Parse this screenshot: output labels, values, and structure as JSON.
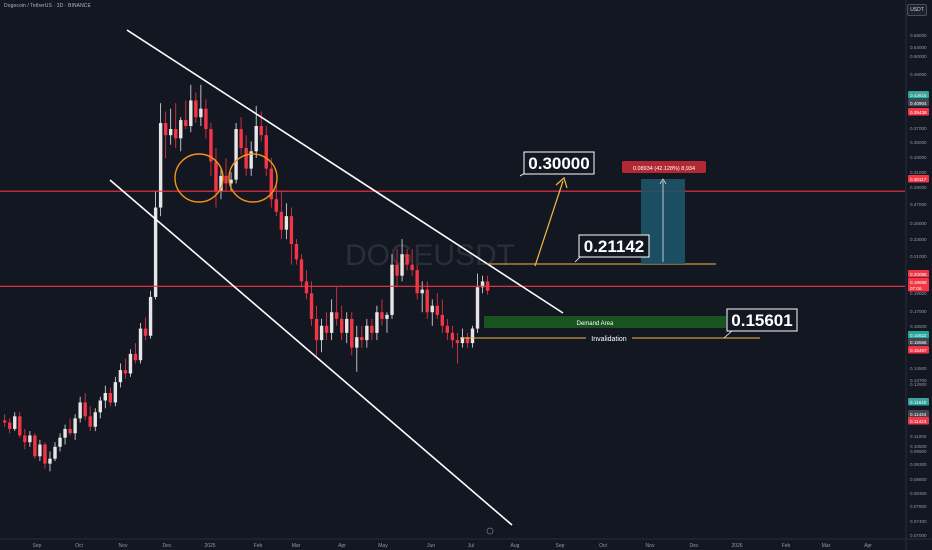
{
  "header": {
    "title": "Dogecoin / TetherUS · 3D · BINANCE",
    "currency": "USDT"
  },
  "chart_data": {
    "type": "candlestick",
    "symbol": "DOGEUSDT",
    "interval": "3D",
    "exchange": "BINANCE",
    "watermark": "DOGEUSDT",
    "x_labels": [
      "Sep",
      "Oct",
      "Nov",
      "Dec",
      "2025",
      "Feb",
      "Mar",
      "Apr",
      "May",
      "Jun",
      "Jul",
      "Aug",
      "Sep",
      "Oct",
      "Nov",
      "Dec",
      "2026",
      "Feb",
      "Mar",
      "Apr"
    ],
    "y_ticks": [
      "0.58000",
      "0.54000",
      "0.50000",
      "0.46000",
      "0.42000",
      "0.37000",
      "0.35000",
      "0.33000",
      "0.31000",
      "0.29000",
      "0.27000",
      "0.25000",
      "0.23000",
      "0.21000",
      "0.19000",
      "0.17000",
      "0.16500",
      "0.14500",
      "0.13700",
      "0.12900",
      "0.12100",
      "0.11000",
      "0.10500",
      "0.09900",
      "0.09300",
      "0.08800",
      "0.08300",
      "0.07800",
      "0.07400",
      "0.07000"
    ],
    "y_scale": "log",
    "candles": [
      [
        0.114,
        0.117,
        0.111,
        0.113
      ],
      [
        0.113,
        0.115,
        0.108,
        0.11
      ],
      [
        0.11,
        0.118,
        0.109,
        0.116
      ],
      [
        0.116,
        0.118,
        0.106,
        0.107
      ],
      [
        0.107,
        0.11,
        0.101,
        0.104
      ],
      [
        0.104,
        0.109,
        0.102,
        0.107
      ],
      [
        0.107,
        0.108,
        0.097,
        0.098
      ],
      [
        0.098,
        0.105,
        0.096,
        0.103
      ],
      [
        0.103,
        0.104,
        0.093,
        0.095
      ],
      [
        0.095,
        0.1,
        0.092,
        0.097
      ],
      [
        0.097,
        0.104,
        0.096,
        0.102
      ],
      [
        0.102,
        0.108,
        0.1,
        0.106
      ],
      [
        0.106,
        0.112,
        0.103,
        0.11
      ],
      [
        0.11,
        0.115,
        0.107,
        0.108
      ],
      [
        0.108,
        0.117,
        0.105,
        0.115
      ],
      [
        0.115,
        0.126,
        0.113,
        0.123
      ],
      [
        0.123,
        0.128,
        0.114,
        0.116
      ],
      [
        0.116,
        0.121,
        0.109,
        0.111
      ],
      [
        0.111,
        0.12,
        0.109,
        0.118
      ],
      [
        0.118,
        0.126,
        0.115,
        0.124
      ],
      [
        0.124,
        0.132,
        0.12,
        0.128
      ],
      [
        0.128,
        0.131,
        0.121,
        0.123
      ],
      [
        0.123,
        0.137,
        0.121,
        0.134
      ],
      [
        0.134,
        0.145,
        0.131,
        0.141
      ],
      [
        0.141,
        0.148,
        0.136,
        0.139
      ],
      [
        0.139,
        0.154,
        0.137,
        0.151
      ],
      [
        0.151,
        0.158,
        0.145,
        0.147
      ],
      [
        0.147,
        0.172,
        0.145,
        0.168
      ],
      [
        0.168,
        0.176,
        0.16,
        0.163
      ],
      [
        0.163,
        0.197,
        0.161,
        0.192
      ],
      [
        0.192,
        0.3,
        0.19,
        0.28
      ],
      [
        0.28,
        0.435,
        0.27,
        0.4
      ],
      [
        0.4,
        0.42,
        0.345,
        0.38
      ],
      [
        0.38,
        0.425,
        0.365,
        0.39
      ],
      [
        0.39,
        0.435,
        0.36,
        0.375
      ],
      [
        0.375,
        0.41,
        0.355,
        0.405
      ],
      [
        0.405,
        0.44,
        0.39,
        0.395
      ],
      [
        0.395,
        0.47,
        0.385,
        0.44
      ],
      [
        0.44,
        0.455,
        0.4,
        0.41
      ],
      [
        0.41,
        0.47,
        0.395,
        0.425
      ],
      [
        0.425,
        0.442,
        0.375,
        0.39
      ],
      [
        0.39,
        0.4,
        0.32,
        0.34
      ],
      [
        0.34,
        0.36,
        0.28,
        0.3
      ],
      [
        0.3,
        0.33,
        0.29,
        0.32
      ],
      [
        0.32,
        0.345,
        0.3,
        0.31
      ],
      [
        0.31,
        0.325,
        0.3,
        0.315
      ],
      [
        0.315,
        0.4,
        0.31,
        0.39
      ],
      [
        0.39,
        0.41,
        0.35,
        0.36
      ],
      [
        0.36,
        0.38,
        0.32,
        0.33
      ],
      [
        0.33,
        0.37,
        0.32,
        0.355
      ],
      [
        0.355,
        0.43,
        0.345,
        0.395
      ],
      [
        0.395,
        0.42,
        0.37,
        0.38
      ],
      [
        0.38,
        0.395,
        0.32,
        0.33
      ],
      [
        0.33,
        0.345,
        0.28,
        0.29
      ],
      [
        0.29,
        0.31,
        0.27,
        0.275
      ],
      [
        0.275,
        0.3,
        0.245,
        0.255
      ],
      [
        0.255,
        0.285,
        0.245,
        0.27
      ],
      [
        0.27,
        0.28,
        0.22,
        0.24
      ],
      [
        0.24,
        0.245,
        0.22,
        0.225
      ],
      [
        0.225,
        0.23,
        0.2,
        0.205
      ],
      [
        0.205,
        0.215,
        0.19,
        0.195
      ],
      [
        0.195,
        0.205,
        0.17,
        0.175
      ],
      [
        0.175,
        0.185,
        0.15,
        0.16
      ],
      [
        0.16,
        0.175,
        0.152,
        0.17
      ],
      [
        0.17,
        0.18,
        0.16,
        0.165
      ],
      [
        0.165,
        0.19,
        0.16,
        0.18
      ],
      [
        0.18,
        0.2,
        0.17,
        0.175
      ],
      [
        0.175,
        0.185,
        0.16,
        0.165
      ],
      [
        0.165,
        0.18,
        0.158,
        0.175
      ],
      [
        0.175,
        0.18,
        0.15,
        0.155
      ],
      [
        0.155,
        0.17,
        0.14,
        0.162
      ],
      [
        0.162,
        0.17,
        0.155,
        0.16
      ],
      [
        0.16,
        0.175,
        0.155,
        0.17
      ],
      [
        0.17,
        0.175,
        0.16,
        0.165
      ],
      [
        0.165,
        0.185,
        0.16,
        0.18
      ],
      [
        0.18,
        0.19,
        0.17,
        0.175
      ],
      [
        0.175,
        0.18,
        0.165,
        0.178
      ],
      [
        0.178,
        0.23,
        0.175,
        0.22
      ],
      [
        0.22,
        0.235,
        0.2,
        0.21
      ],
      [
        0.21,
        0.245,
        0.205,
        0.23
      ],
      [
        0.23,
        0.235,
        0.215,
        0.22
      ],
      [
        0.22,
        0.235,
        0.21,
        0.215
      ],
      [
        0.215,
        0.22,
        0.19,
        0.195
      ],
      [
        0.195,
        0.205,
        0.18,
        0.198
      ],
      [
        0.198,
        0.205,
        0.175,
        0.18
      ],
      [
        0.18,
        0.19,
        0.17,
        0.185
      ],
      [
        0.185,
        0.195,
        0.175,
        0.178
      ],
      [
        0.178,
        0.19,
        0.165,
        0.17
      ],
      [
        0.17,
        0.175,
        0.16,
        0.165
      ],
      [
        0.165,
        0.17,
        0.155,
        0.16
      ],
      [
        0.16,
        0.165,
        0.145,
        0.158
      ],
      [
        0.158,
        0.168,
        0.155,
        0.162
      ],
      [
        0.162,
        0.165,
        0.155,
        0.158
      ],
      [
        0.158,
        0.17,
        0.155,
        0.168
      ],
      [
        0.168,
        0.212,
        0.165,
        0.2
      ],
      [
        0.2,
        0.21,
        0.195,
        0.205
      ],
      [
        0.205,
        0.21,
        0.194,
        0.197
      ]
    ],
    "price_levels": [
      {
        "label": "0.30000",
        "value": 0.3
      },
      {
        "label": "0.21142",
        "value": 0.21142
      },
      {
        "label": "0.15601",
        "value": 0.15601
      }
    ],
    "horizontal_lines": [
      0.3,
      0.2008
    ],
    "annotations": {
      "demand_area": "Demand Area",
      "invalidation": "Invalidation",
      "measure_label": "0.08934 (42.128%) 8,934"
    },
    "price_badges": [
      {
        "text": "0.43615",
        "color": "#26a69a"
      },
      {
        "text": "0.40904",
        "color": "#434651"
      },
      {
        "text": "0.39438",
        "color": "#f23645"
      },
      {
        "text": "0.30117",
        "color": "#f23645"
      },
      {
        "text": "0.20085",
        "color": "#f23645"
      },
      {
        "text": "0.19688",
        "color": "#f23645"
      },
      {
        "text": "07:06",
        "color": "#f23645"
      },
      {
        "text": "0.15822",
        "color": "#26a69a"
      },
      {
        "text": "0.15556",
        "color": "#434651"
      },
      {
        "text": "0.15497",
        "color": "#f23645"
      },
      {
        "text": "0.11640",
        "color": "#26a69a"
      },
      {
        "text": "0.11434",
        "color": "#434651"
      },
      {
        "text": "0.11423",
        "color": "#f23645"
      }
    ],
    "colors": {
      "background": "#131722",
      "up": "#e6e6e6",
      "down": "#f23645",
      "channel": "#ffffff",
      "level": "#f23645",
      "circle": "#f7931a",
      "arrow": "#f5b942",
      "demand": "#1b5e20",
      "measure": "#1e5468"
    }
  }
}
